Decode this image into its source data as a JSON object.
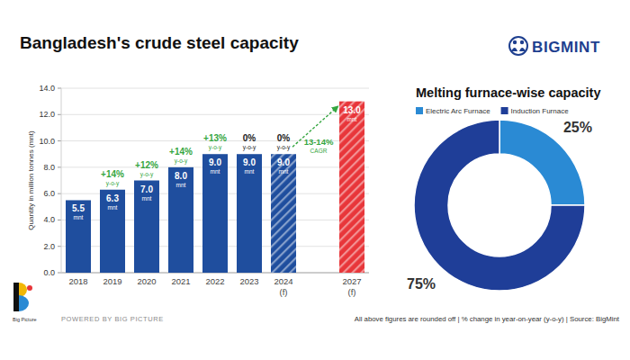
{
  "header": {
    "brand": "BIGMINT"
  },
  "chart_data": [
    {
      "type": "bar",
      "title": "Bangladesh's crude steel capacity",
      "ylabel": "Quantity in million tonnes (mnt)",
      "categories": [
        "2018",
        "2019",
        "2020",
        "2021",
        "2022",
        "2023",
        "2024\n(f)",
        null,
        "2027\n(f)"
      ],
      "values": [
        5.5,
        6.3,
        7.0,
        8.0,
        9.0,
        9.0,
        9.0,
        null,
        13.0
      ],
      "value_labels": [
        "5.5\nmnt",
        "6.3\nmnt",
        "7.0\nmnt",
        "8.0\nmnt",
        "9.0\nmnt",
        "9.0\nmnt",
        "9.0\nmnt",
        null,
        "13.0\nmnt"
      ],
      "colors": [
        "#1f4e9e",
        "#1f4e9e",
        "#1f4e9e",
        "#1f4e9e",
        "#1f4e9e",
        "#1f4e9e",
        "#1f4e9e",
        null,
        "#e8363a"
      ],
      "ylim": [
        0,
        14
      ],
      "yticks": [
        {
          "value": 0,
          "label": "0.0"
        },
        {
          "value": 2,
          "label": "2.0"
        },
        {
          "value": 4,
          "label": "4.0"
        },
        {
          "value": 6,
          "label": "6.0"
        },
        {
          "value": 8,
          "label": "8.0"
        },
        {
          "value": 10,
          "label": "10.0"
        },
        {
          "value": 12,
          "label": "12.0"
        },
        {
          "value": 14,
          "label": "14.0"
        }
      ],
      "grid": true,
      "data_labels": true,
      "annotations": [
        {
          "category": "2019",
          "text": "+14%",
          "sub": "y-o-y",
          "color": "#35a640"
        },
        {
          "category": "2020",
          "text": "+12%",
          "sub": "y-o-y",
          "color": "#35a640"
        },
        {
          "category": "2021",
          "text": "+14%",
          "sub": "y-o-y",
          "color": "#35a640"
        },
        {
          "category": "2022",
          "text": "+13%",
          "sub": "y-o-y",
          "color": "#35a640"
        },
        {
          "category": "2023",
          "text": "0%",
          "sub": "y-o-y",
          "color": "#1a1a1a"
        },
        {
          "category": "2024\n(f)",
          "text": "0%",
          "sub": "y-o-y",
          "color": "#1a1a1a"
        },
        {
          "from": "2024\n(f)",
          "to": "2027\n(f)",
          "text": "13-14%",
          "sub": "CAGR",
          "color": "#35a640"
        }
      ]
    },
    {
      "type": "pie",
      "title": "Melting furnace-wise capacity",
      "categories": [
        "Electric Arc Furnace",
        "Induction Furnace"
      ],
      "values": [
        25,
        75
      ],
      "value_labels": [
        "25%",
        "75%"
      ],
      "colors": [
        "#2a8ad4",
        "#1f3e98"
      ],
      "legend": "top",
      "data_labels": true
    }
  ],
  "footer": {
    "logo_text": "Big Picture",
    "powered_by": "POWERED BY BIG PICTURE",
    "note": "All above figures are rounded off | % change in year-on-year (y-o-y) | Source: BigMint"
  }
}
